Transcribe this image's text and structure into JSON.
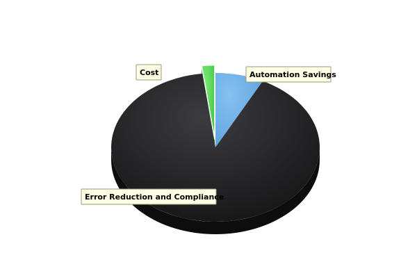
{
  "chart_data": {
    "type": "pie",
    "style": "3d",
    "title": "",
    "categories": [
      "Automation Savings",
      "Error Reduction and Compliance",
      "Cost"
    ],
    "values": [
      7.5,
      90.5,
      2.0
    ],
    "colors": [
      "#6aaee8",
      "#2b2b2d",
      "#5cdc5a"
    ],
    "exploded": [
      "Cost"
    ],
    "legend": "none"
  }
}
